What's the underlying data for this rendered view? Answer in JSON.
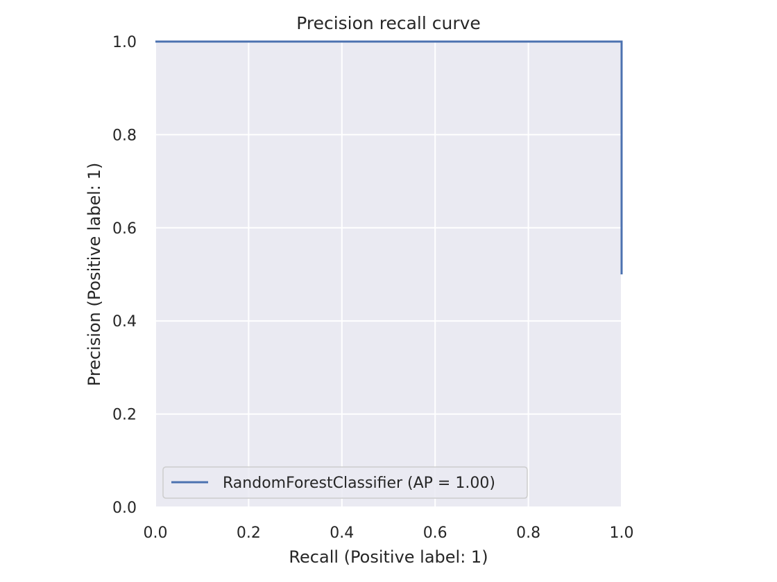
{
  "chart_data": {
    "type": "line",
    "title": "Precision recall curve",
    "xlabel": "Recall (Positive label: 1)",
    "ylabel": "Precision (Positive label: 1)",
    "xlim": [
      0.0,
      1.0
    ],
    "ylim": [
      0.0,
      1.0
    ],
    "x_ticks": [
      "0.0",
      "0.2",
      "0.4",
      "0.6",
      "0.8",
      "1.0"
    ],
    "y_ticks": [
      "0.0",
      "0.2",
      "0.4",
      "0.6",
      "0.8",
      "1.0"
    ],
    "grid": true,
    "legend_position": "lower-left",
    "series": [
      {
        "name": "RandomForestClassifier (AP = 1.00)",
        "color": "#4c72b0",
        "x": [
          0.0,
          1.0,
          1.0
        ],
        "y": [
          1.0,
          1.0,
          0.5
        ]
      }
    ],
    "colors": {
      "plot_background": "#eaeaf2",
      "grid": "#ffffff",
      "text": "#262626"
    }
  }
}
